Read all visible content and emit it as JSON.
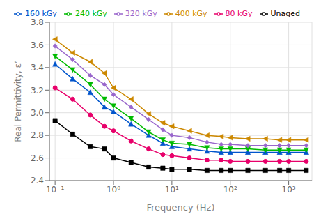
{
  "chart_data": {
    "type": "line",
    "xlabel": "Frequency (Hz)",
    "ylabel": "Real Permittivity, ε’",
    "log": "x",
    "grid": true,
    "legend": "top",
    "xlim": [
      0.08,
      2500
    ],
    "xticks": [
      {
        "value": 0.1,
        "label": "10⁻¹"
      },
      {
        "value": 1,
        "label": "10⁰"
      },
      {
        "value": 10,
        "label": "10¹"
      },
      {
        "value": 100,
        "label": "10²"
      },
      {
        "value": 1000,
        "label": "10³"
      }
    ],
    "ylim": [
      2.4,
      3.8
    ],
    "yticks": [
      2.4,
      2.6,
      2.8,
      {
        "value": 3.0,
        "label": "3.0"
      },
      3.2,
      3.4,
      3.6,
      3.8
    ],
    "x": [
      0.1,
      0.2,
      0.4,
      0.7,
      1.0,
      2.0,
      4.0,
      7.0,
      10,
      20,
      40,
      70,
      100,
      200,
      400,
      700,
      1000,
      2000
    ],
    "series": [
      {
        "name": "Unaged",
        "color": "#000000",
        "marker": "square",
        "values": [
          2.93,
          2.81,
          2.7,
          2.68,
          2.6,
          2.56,
          2.52,
          2.51,
          2.5,
          2.5,
          2.49,
          2.49,
          2.49,
          2.49,
          2.49,
          2.49,
          2.49,
          2.49
        ]
      },
      {
        "name": "80 kGy",
        "color": "#e8006a",
        "marker": "circle",
        "values": [
          3.22,
          3.12,
          2.98,
          2.88,
          2.84,
          2.75,
          2.68,
          2.63,
          2.62,
          2.6,
          2.58,
          2.58,
          2.57,
          2.57,
          2.57,
          2.57,
          2.57,
          2.57
        ]
      },
      {
        "name": "160 kGy",
        "color": "#0055cc",
        "marker": "triangle-up",
        "values": [
          3.43,
          3.3,
          3.18,
          3.05,
          3.01,
          2.9,
          2.8,
          2.73,
          2.7,
          2.68,
          2.66,
          2.65,
          2.65,
          2.65,
          2.65,
          2.65,
          2.65,
          2.65
        ]
      },
      {
        "name": "240 kGy",
        "color": "#00bb00",
        "marker": "triangle-down",
        "values": [
          3.5,
          3.38,
          3.25,
          3.12,
          3.06,
          2.95,
          2.83,
          2.76,
          2.73,
          2.72,
          2.69,
          2.68,
          2.68,
          2.68,
          2.67,
          2.67,
          2.67,
          2.67
        ]
      },
      {
        "name": "320 kGy",
        "color": "#9966cc",
        "marker": "diamond",
        "values": [
          3.59,
          3.47,
          3.33,
          3.25,
          3.16,
          3.05,
          2.94,
          2.85,
          2.8,
          2.78,
          2.74,
          2.72,
          2.72,
          2.71,
          2.71,
          2.71,
          2.71,
          2.71
        ]
      },
      {
        "name": "400 kGy",
        "color": "#cc8800",
        "marker": "triangle-left",
        "values": [
          3.65,
          3.53,
          3.45,
          3.35,
          3.22,
          3.12,
          2.99,
          2.91,
          2.88,
          2.84,
          2.8,
          2.79,
          2.78,
          2.77,
          2.77,
          2.76,
          2.76,
          2.76
        ]
      }
    ]
  }
}
